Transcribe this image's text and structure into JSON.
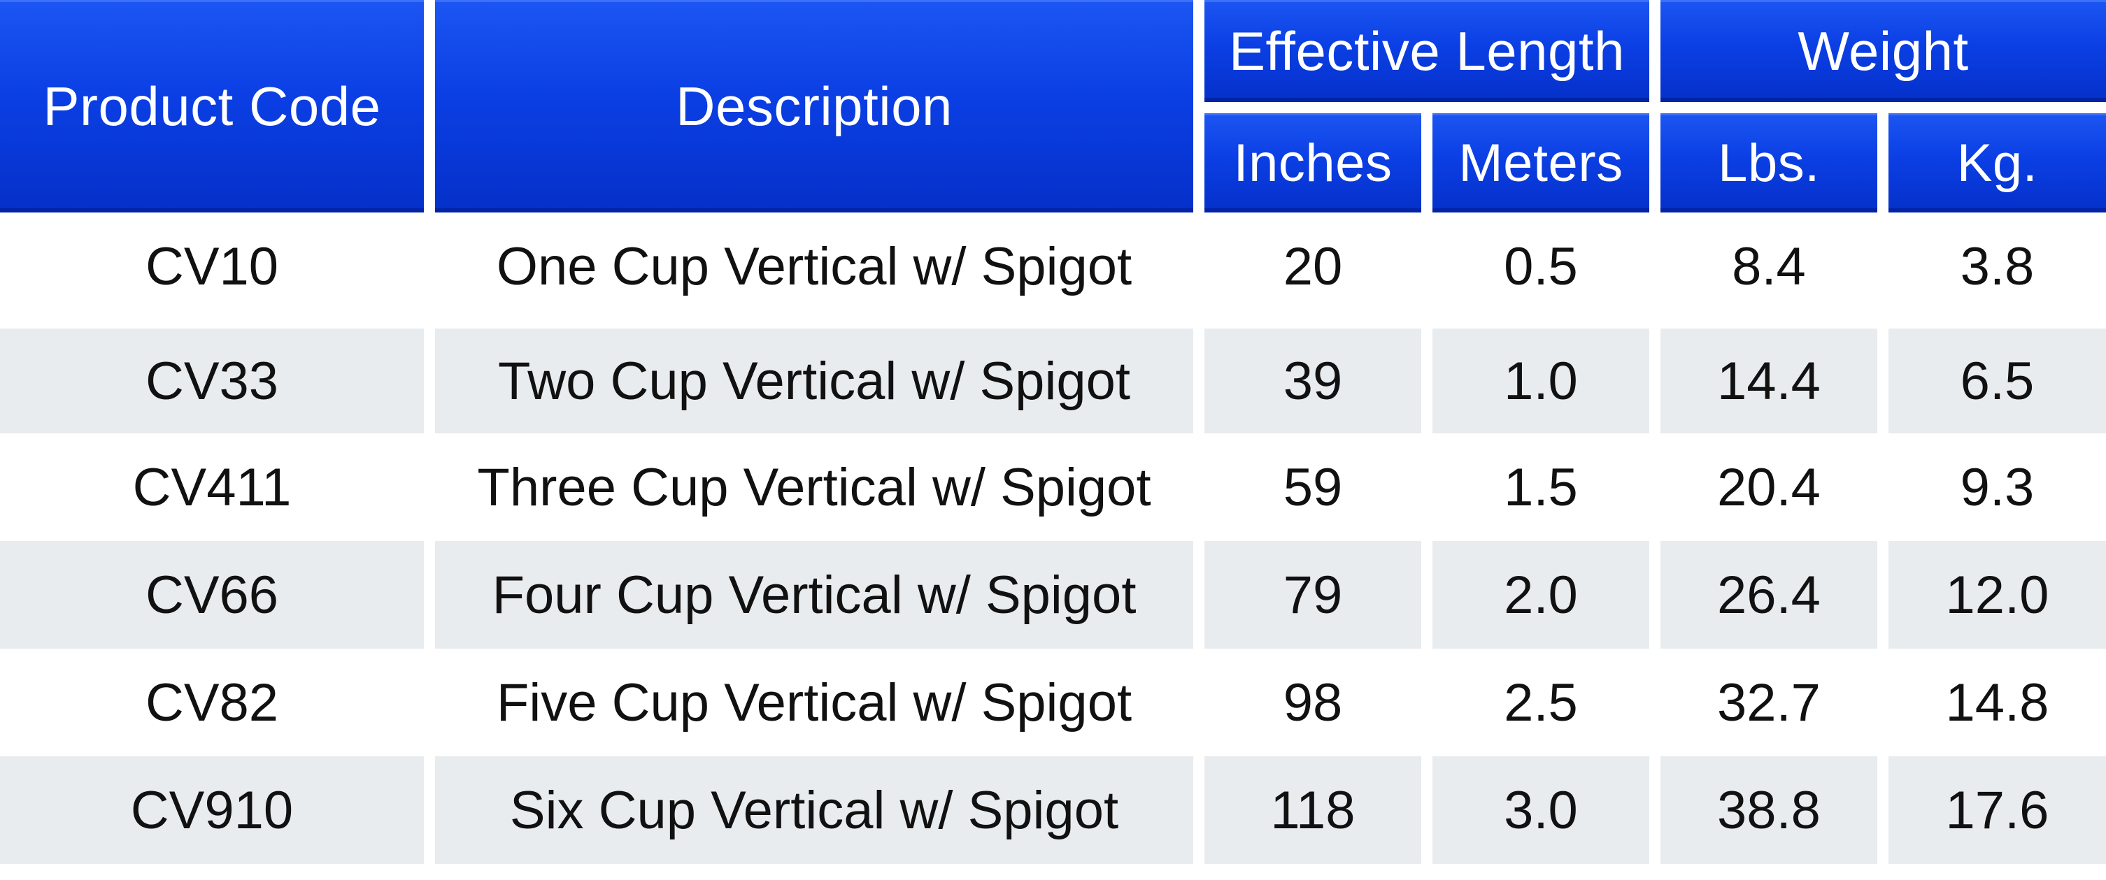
{
  "table": {
    "headers": {
      "product_code": "Product Code",
      "description": "Description",
      "effective_length": "Effective Length",
      "weight": "Weight",
      "inches": "Inches",
      "meters": "Meters",
      "lbs": "Lbs.",
      "kg": "Kg."
    },
    "rows": [
      {
        "code": "CV10",
        "description": "One Cup Vertical w/ Spigot",
        "inches": "20",
        "meters": "0.5",
        "lbs": "8.4",
        "kg": "3.8"
      },
      {
        "code": "CV33",
        "description": "Two Cup Vertical w/ Spigot",
        "inches": "39",
        "meters": "1.0",
        "lbs": "14.4",
        "kg": "6.5"
      },
      {
        "code": "CV411",
        "description": "Three Cup Vertical w/ Spigot",
        "inches": "59",
        "meters": "1.5",
        "lbs": "20.4",
        "kg": "9.3"
      },
      {
        "code": "CV66",
        "description": "Four Cup Vertical w/ Spigot",
        "inches": "79",
        "meters": "2.0",
        "lbs": "26.4",
        "kg": "12.0"
      },
      {
        "code": "CV82",
        "description": "Five Cup Vertical w/ Spigot",
        "inches": "98",
        "meters": "2.5",
        "lbs": "32.7",
        "kg": "14.8"
      },
      {
        "code": "CV910",
        "description": "Six Cup Vertical w/ Spigot",
        "inches": "118",
        "meters": "3.0",
        "lbs": "38.8",
        "kg": "17.6"
      }
    ],
    "colors": {
      "header_blue": "#0b3fe4",
      "row_alt_gray": "#e8ecee",
      "text_dark": "#111111",
      "text_white": "#ffffff"
    }
  }
}
